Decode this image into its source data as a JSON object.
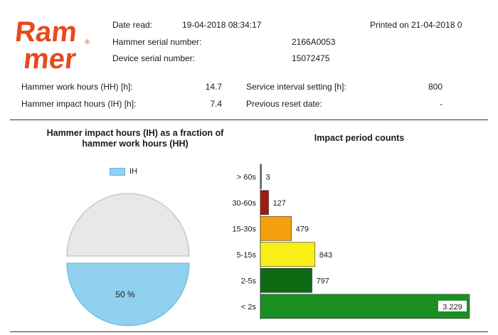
{
  "brand": {
    "line1": "Ram",
    "line2": "mer",
    "mark": "®",
    "color": "#e8491d"
  },
  "header": {
    "date_read_label": "Date read:",
    "date_read_value": "19-04-2018 08:34:17",
    "printed_on": "Printed on 21-04-2018 0",
    "hammer_serial_label": "Hammer serial number:",
    "hammer_serial_value": "2166A0053",
    "device_serial_label": "Device serial number:",
    "device_serial_value": "15072475"
  },
  "stats": {
    "work_hours_label": "Hammer work hours (HH) [h]:",
    "work_hours_value": "14.7",
    "impact_hours_label": "Hammer impact hours (IH) [h]:",
    "impact_hours_value": "7.4",
    "service_interval_label": "Service interval setting [h]:",
    "service_interval_value": "800",
    "previous_reset_label": "Previous reset date:",
    "previous_reset_value": "-"
  },
  "chart_data": [
    {
      "type": "pie",
      "title": "Hammer impact  hours (IH) as a fraction of hammer work hours (HH)",
      "title_line1": "Hammer impact  hours (IH) as a fraction of",
      "title_line2": "hammer work hours (HH)",
      "legend": [
        "IH"
      ],
      "slices": [
        {
          "name": "IH",
          "value": 50,
          "label": "50 %",
          "color": "#8fd1ee"
        },
        {
          "name": "",
          "value": 50,
          "label": "",
          "color": "#e8e8e8"
        }
      ]
    },
    {
      "type": "bar",
      "orientation": "horizontal",
      "title": "Impact period counts",
      "categories": [
        "> 60s",
        "30-60s",
        "15-30s",
        "5-15s",
        "2-5s",
        "< 2s"
      ],
      "values": [
        3,
        127,
        479,
        843,
        797,
        3229
      ],
      "value_labels": [
        "3",
        "127",
        "479",
        "843",
        "797",
        "3.229"
      ],
      "colors": [
        "#4f6fa0",
        "#a11a0e",
        "#f5a00e",
        "#f9ef17",
        "#0d6b14",
        "#1c8f22"
      ],
      "xlim": [
        0,
        3229
      ]
    }
  ]
}
